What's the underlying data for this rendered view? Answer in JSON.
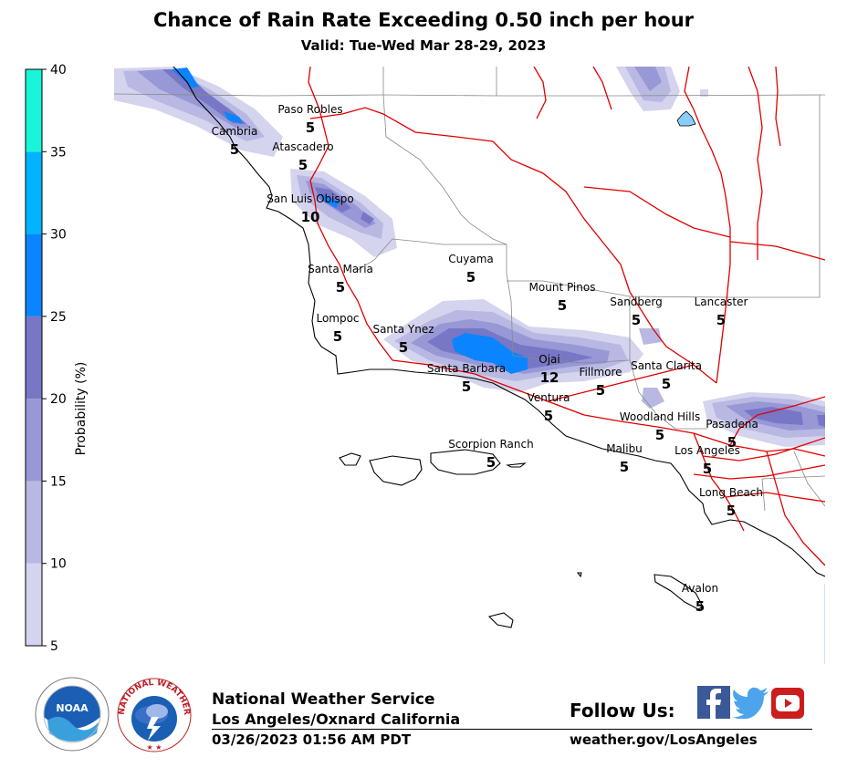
{
  "header": {
    "title": "Chance of Rain Rate Exceeding 0.50 inch per hour",
    "subtitle": "Valid: Tue-Wed Mar 28-29, 2023"
  },
  "colorbar": {
    "label": "Probability (%)",
    "ticks": [
      "40",
      "35",
      "30",
      "25",
      "20",
      "15",
      "10",
      "5"
    ],
    "colors": [
      "#d4d4ee",
      "#b8b8e3",
      "#9898d7",
      "#7777c6",
      "#0a84ff",
      "#00b4ff",
      "#00e5e5",
      "#19f5d8"
    ]
  },
  "cities": [
    {
      "name": "Paso Robles",
      "value": "5"
    },
    {
      "name": "Cambria",
      "value": "5"
    },
    {
      "name": "Atascadero",
      "value": "5"
    },
    {
      "name": "San Luis Obispo",
      "value": "10"
    },
    {
      "name": "Santa Maria",
      "value": "5"
    },
    {
      "name": "Cuyama",
      "value": "5"
    },
    {
      "name": "Mount Pinos",
      "value": "5"
    },
    {
      "name": "Sandberg",
      "value": "5"
    },
    {
      "name": "Lancaster",
      "value": "5"
    },
    {
      "name": "Lompoc",
      "value": "5"
    },
    {
      "name": "Santa Ynez",
      "value": "5"
    },
    {
      "name": "Santa Barbara",
      "value": "5"
    },
    {
      "name": "Ojai",
      "value": "12"
    },
    {
      "name": "Fillmore",
      "value": "5"
    },
    {
      "name": "Santa Clarita",
      "value": "5"
    },
    {
      "name": "Ventura",
      "value": "5"
    },
    {
      "name": "Woodland Hills",
      "value": "5"
    },
    {
      "name": "Pasadena",
      "value": "5"
    },
    {
      "name": "Scorpion Ranch",
      "value": "5"
    },
    {
      "name": "Malibu",
      "value": "5"
    },
    {
      "name": "Los Angeles",
      "value": "5"
    },
    {
      "name": "Long Beach",
      "value": "5"
    },
    {
      "name": "Avalon",
      "value": "5"
    }
  ],
  "footer": {
    "agency": "National Weather Service",
    "office": "Los Angeles/Oxnard California",
    "issued": "03/26/2023 01:56 AM PDT",
    "follow": "Follow Us:",
    "website": "weather.gov/LosAngeles",
    "noaa_logo": "NOAA",
    "nws_logo_text": "NATIONAL WEATHER SERVICE"
  },
  "social": [
    "facebook-icon",
    "twitter-icon",
    "youtube-icon"
  ]
}
